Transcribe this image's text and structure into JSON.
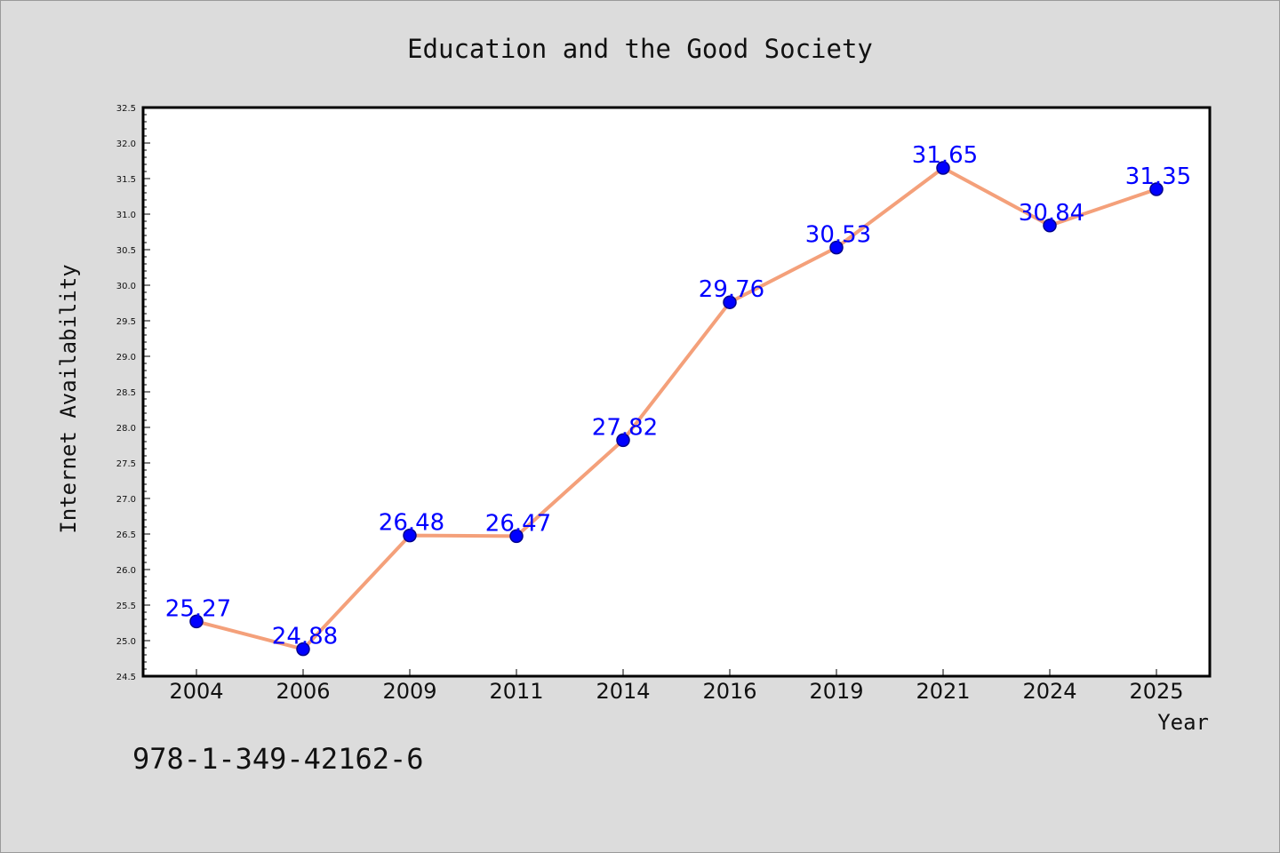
{
  "chart_data": {
    "type": "line",
    "title": "Education and the Good Society",
    "xlabel": "Year",
    "ylabel": "Internet Availability",
    "categories": [
      "2004",
      "2006",
      "2009",
      "2011",
      "2014",
      "2016",
      "2019",
      "2021",
      "2024",
      "2025"
    ],
    "series": [
      {
        "values": [
          25.27,
          24.88,
          26.48,
          26.47,
          27.82,
          29.76,
          30.53,
          31.65,
          30.84,
          31.35
        ]
      }
    ],
    "data_labels": [
      "25.27",
      "24.88",
      "26.48",
      "26.47",
      "27.82",
      "29.76",
      "30.53",
      "31.65",
      "30.84",
      "31.35"
    ],
    "ylim": [
      24.5,
      32.5
    ],
    "yticks": [
      "24.5",
      "25.0",
      "25.5",
      "26.0",
      "26.5",
      "27.0",
      "27.5",
      "28.0",
      "28.5",
      "29.0",
      "29.5",
      "30.0",
      "30.5",
      "31.0",
      "31.5",
      "32.0",
      "32.5"
    ],
    "grid": false,
    "legend": "none",
    "colors": {
      "line": "#f4a07a",
      "marker": "#0000ff",
      "marker_edge": "#00008b",
      "data_label": "#0000ff",
      "background": "#dcdcdc",
      "plot_background": "#ffffff"
    }
  },
  "footer": {
    "isbn": "978-1-349-42162-6"
  }
}
